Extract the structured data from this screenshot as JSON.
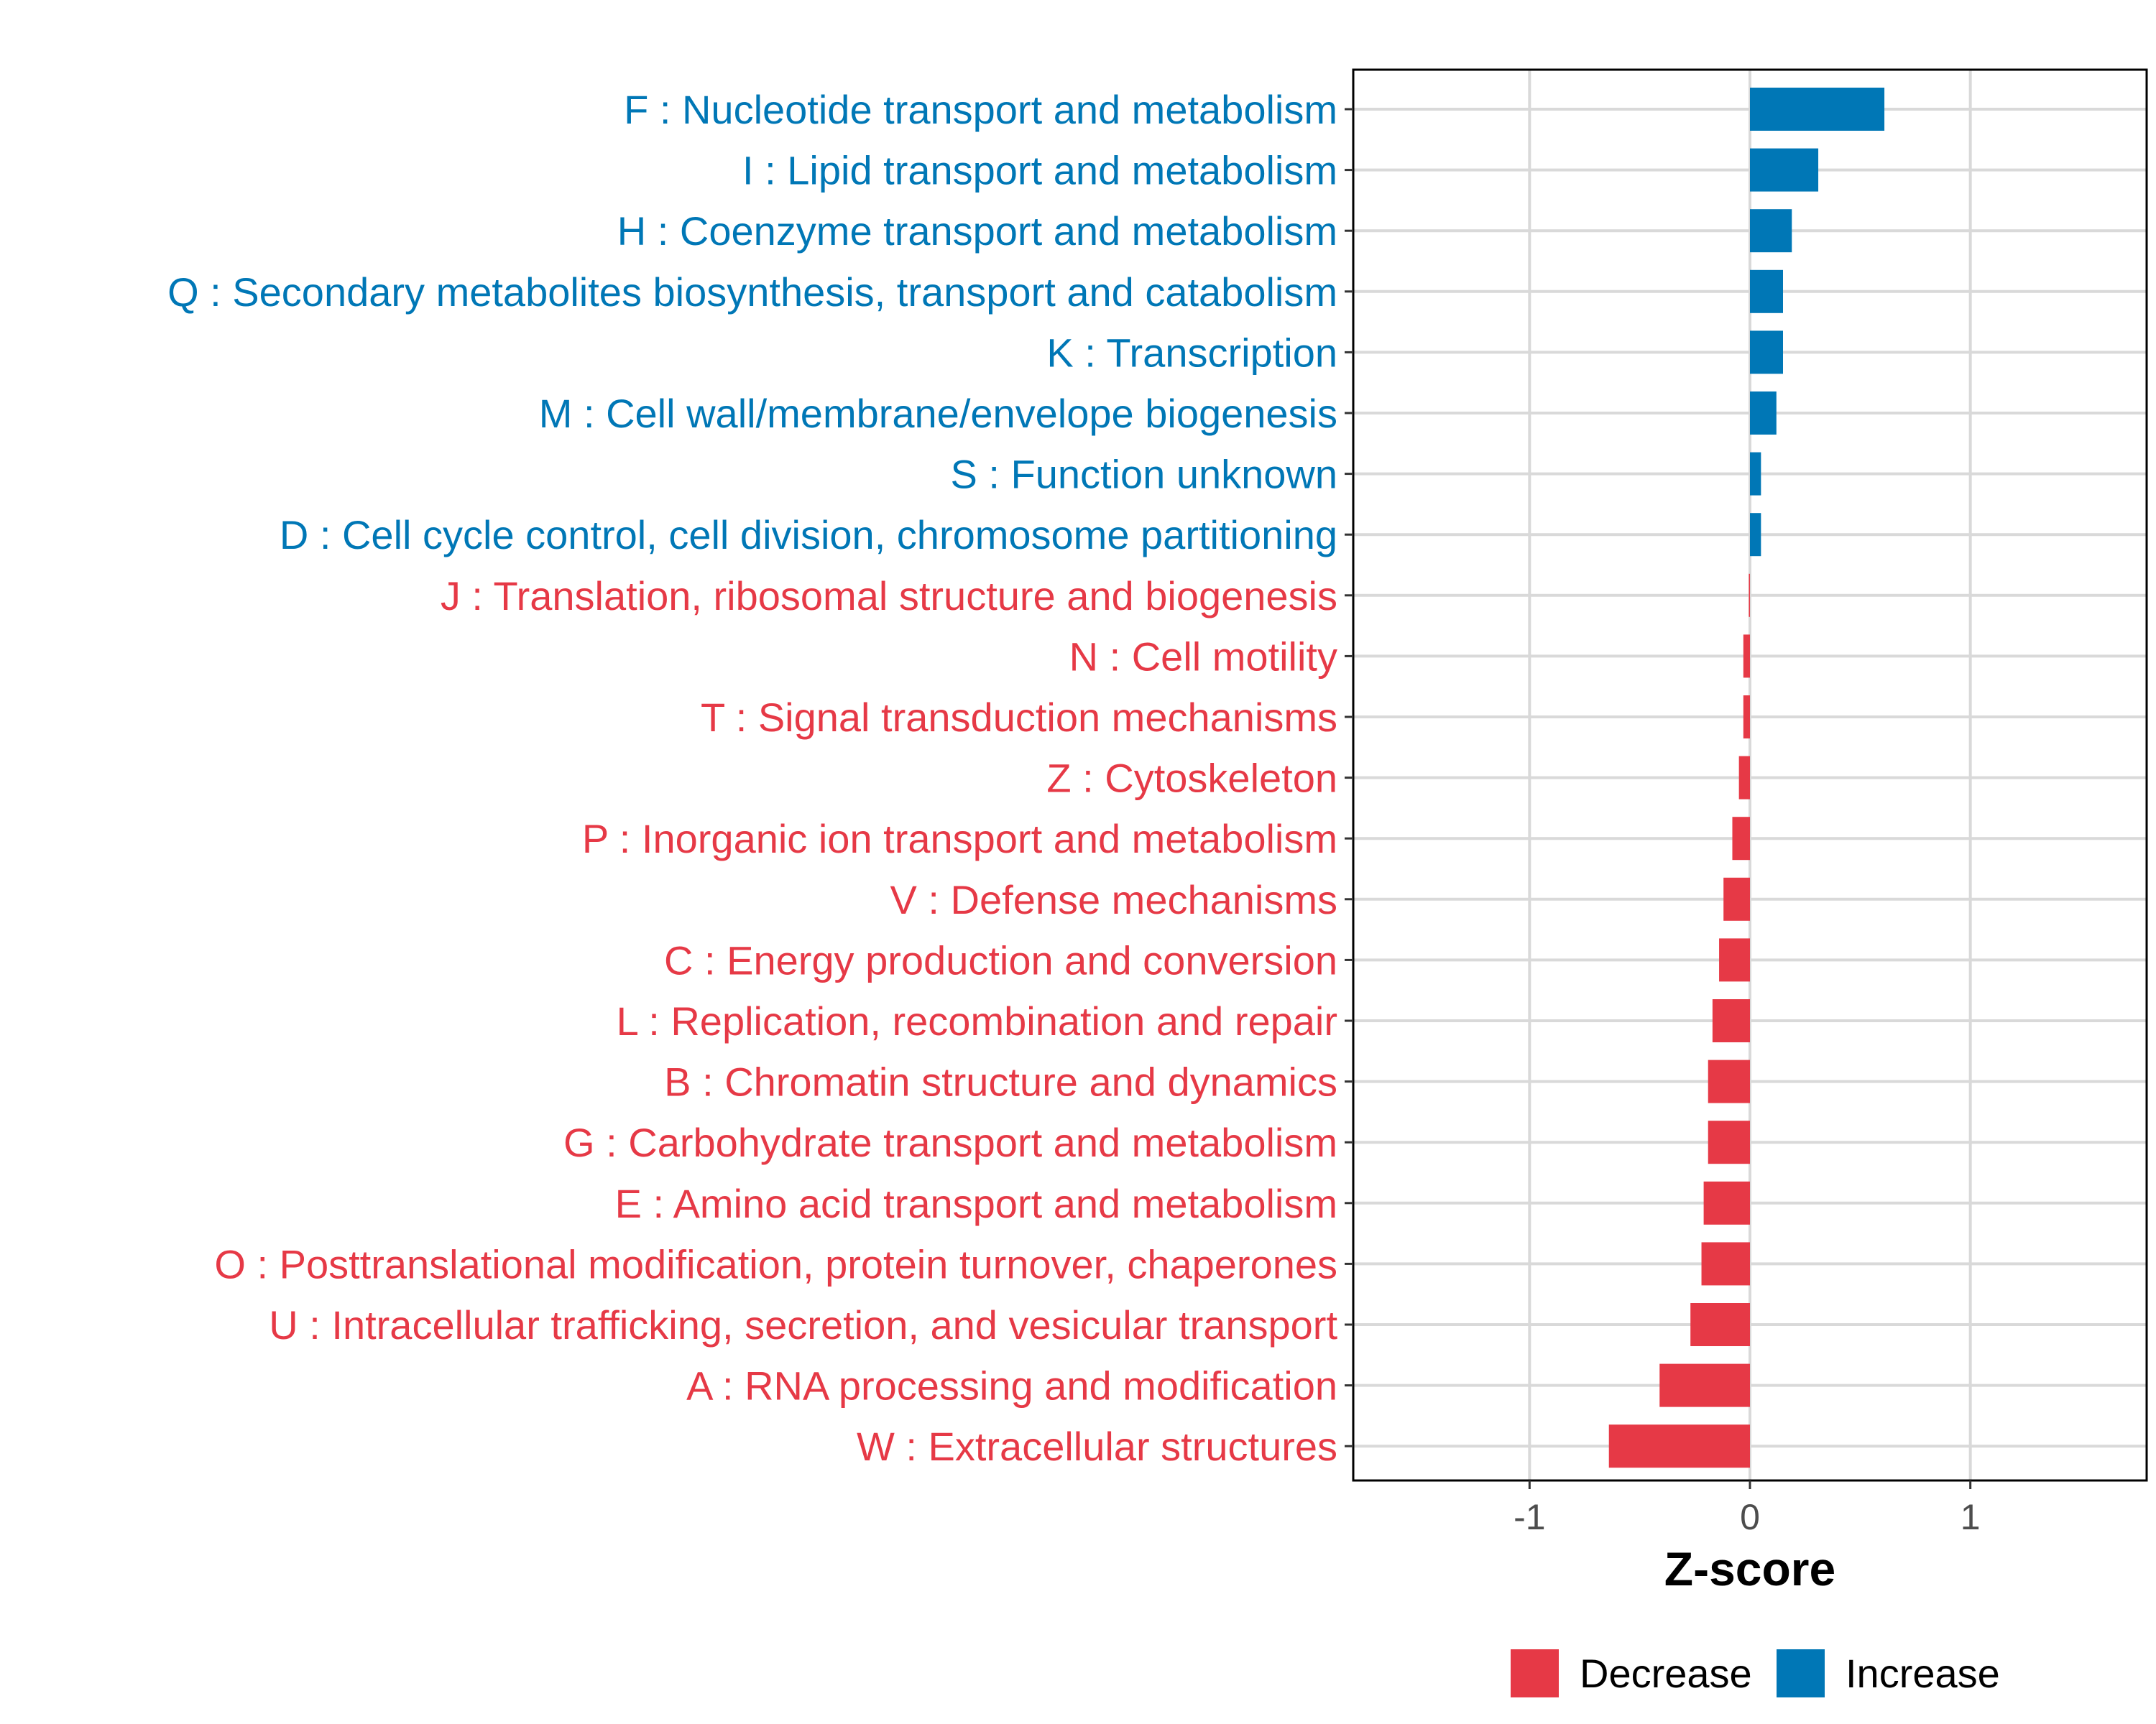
{
  "chart_data": {
    "type": "bar",
    "orientation": "horizontal",
    "title": "",
    "xlabel": "Z-score",
    "ylabel": "",
    "xlim": [
      -1.8,
      1.8
    ],
    "xticks": [
      -1,
      0,
      1
    ],
    "xtick_labels": [
      "-1",
      "0",
      "1"
    ],
    "grid": true,
    "legend_position": "bottom",
    "colors": {
      "Decrease": "#e63946",
      "Increase": "#0077b6"
    },
    "legend": [
      {
        "name": "Decrease",
        "color": "#e63946"
      },
      {
        "name": "Increase",
        "color": "#0077b6"
      }
    ],
    "categories": [
      {
        "label": "F : Nucleotide transport and metabolism",
        "value": 0.61,
        "direction": "Increase"
      },
      {
        "label": "I : Lipid transport and metabolism",
        "value": 0.31,
        "direction": "Increase"
      },
      {
        "label": "H : Coenzyme transport and metabolism",
        "value": 0.19,
        "direction": "Increase"
      },
      {
        "label": "Q : Secondary metabolites biosynthesis, transport and catabolism",
        "value": 0.15,
        "direction": "Increase"
      },
      {
        "label": "K : Transcription",
        "value": 0.15,
        "direction": "Increase"
      },
      {
        "label": "M : Cell wall/membrane/envelope biogenesis",
        "value": 0.12,
        "direction": "Increase"
      },
      {
        "label": "S : Function unknown",
        "value": 0.05,
        "direction": "Increase"
      },
      {
        "label": "D : Cell cycle control, cell division, chromosome partitioning",
        "value": 0.05,
        "direction": "Increase"
      },
      {
        "label": "J : Translation, ribosomal structure and biogenesis",
        "value": -0.005,
        "direction": "Decrease"
      },
      {
        "label": "N : Cell motility",
        "value": -0.03,
        "direction": "Decrease"
      },
      {
        "label": "T : Signal transduction mechanisms",
        "value": -0.03,
        "direction": "Decrease"
      },
      {
        "label": "Z : Cytoskeleton",
        "value": -0.05,
        "direction": "Decrease"
      },
      {
        "label": "P : Inorganic ion transport and metabolism",
        "value": -0.08,
        "direction": "Decrease"
      },
      {
        "label": "V : Defense mechanisms",
        "value": -0.12,
        "direction": "Decrease"
      },
      {
        "label": "C : Energy production and conversion",
        "value": -0.14,
        "direction": "Decrease"
      },
      {
        "label": "L : Replication, recombination and repair",
        "value": -0.17,
        "direction": "Decrease"
      },
      {
        "label": "B : Chromatin structure and dynamics",
        "value": -0.19,
        "direction": "Decrease"
      },
      {
        "label": "G : Carbohydrate transport and metabolism",
        "value": -0.19,
        "direction": "Decrease"
      },
      {
        "label": "E : Amino acid transport and metabolism",
        "value": -0.21,
        "direction": "Decrease"
      },
      {
        "label": "O : Posttranslational modification, protein turnover, chaperones",
        "value": -0.22,
        "direction": "Decrease"
      },
      {
        "label": "U : Intracellular trafficking, secretion, and vesicular transport",
        "value": -0.27,
        "direction": "Decrease"
      },
      {
        "label": "A : RNA processing and modification",
        "value": -0.41,
        "direction": "Decrease"
      },
      {
        "label": "W : Extracellular structures",
        "value": -0.64,
        "direction": "Decrease"
      }
    ]
  }
}
